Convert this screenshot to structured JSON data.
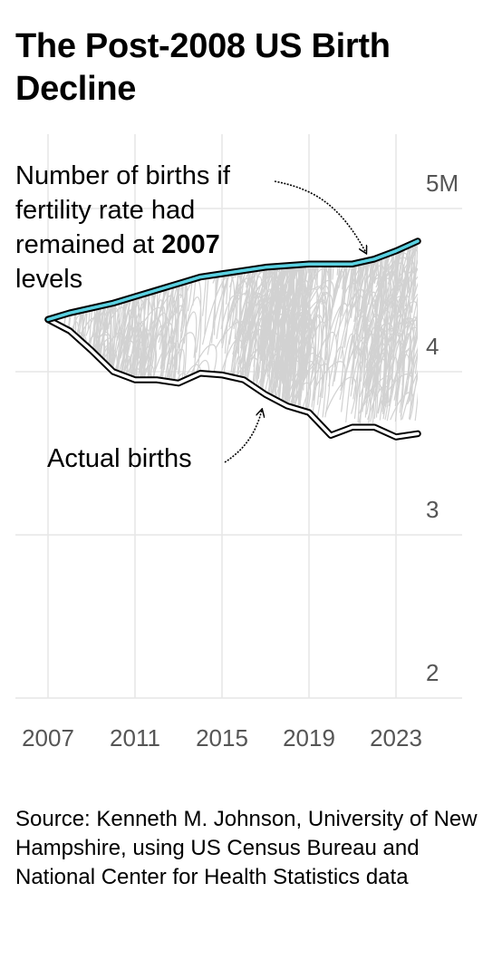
{
  "title": "The Post-2008 US Birth Decline",
  "source": "Source: Kenneth M. Johnson, University of New Hampshire, using US Census Bureau and National Center for Health Statistics data",
  "annotations": {
    "projected_text_lines": [
      "Number of births if",
      "fertility rate had"
    ],
    "projected_line3_prefix": "remained at ",
    "projected_line3_bold": "2007",
    "projected_line4": "levels",
    "actual": "Actual births"
  },
  "colors": {
    "projected": "#5ad0e0",
    "outline": "#000000",
    "grid": "#e6e6e6",
    "gap_scribble": "#d2d2d2",
    "axis_text": "#555555"
  },
  "chart_data": {
    "type": "line",
    "xlim": [
      2007,
      2023.4
    ],
    "ylim": [
      2,
      5.2
    ],
    "x_ticks": [
      2007,
      2011,
      2015,
      2019,
      2023
    ],
    "x_tick_labels": [
      "2007",
      "2011",
      "2015",
      "2019",
      "2023"
    ],
    "y_ticks": [
      2,
      3,
      4,
      5
    ],
    "y_tick_labels": [
      "2",
      "3",
      "4",
      "5M"
    ],
    "grid": true,
    "series": [
      {
        "key": "projected",
        "x": [
          2007,
          2008,
          2009,
          2010,
          2011,
          2012,
          2013,
          2014,
          2015,
          2016,
          2017,
          2018,
          2019,
          2020,
          2021,
          2022,
          2023,
          2024
        ],
        "values": [
          4.32,
          4.36,
          4.39,
          4.42,
          4.46,
          4.5,
          4.54,
          4.58,
          4.6,
          4.62,
          4.64,
          4.65,
          4.66,
          4.66,
          4.66,
          4.69,
          4.74,
          4.8
        ]
      },
      {
        "key": "actual",
        "x": [
          2007,
          2008,
          2009,
          2010,
          2011,
          2012,
          2013,
          2014,
          2015,
          2016,
          2017,
          2018,
          2019,
          2020,
          2021,
          2022,
          2023,
          2024
        ],
        "values": [
          4.32,
          4.25,
          4.13,
          4.0,
          3.95,
          3.95,
          3.93,
          3.99,
          3.98,
          3.95,
          3.86,
          3.79,
          3.75,
          3.61,
          3.66,
          3.66,
          3.6,
          3.62
        ]
      }
    ]
  }
}
